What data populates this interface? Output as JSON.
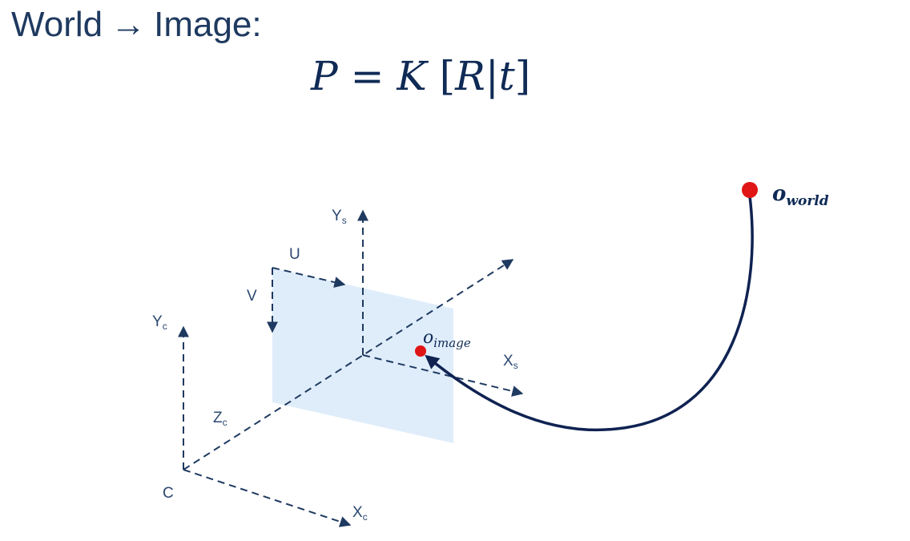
{
  "title": {
    "from": "World",
    "arrow": "→",
    "to": "Image:"
  },
  "formula": {
    "P": "P",
    "eq": "=",
    "K": "K",
    "lb": "[",
    "R": "R",
    "bar": "|",
    "t": "t",
    "rb": "]"
  },
  "labels": {
    "ys": "Y",
    "ys_sub": "s",
    "u": "U",
    "v": "V",
    "yc": "Y",
    "yc_sub": "c",
    "zc": "Z",
    "zc_sub": "c",
    "xs": "X",
    "xs_sub": "s",
    "c": "C",
    "xc": "X",
    "xc_sub": "c"
  },
  "points": {
    "o_image": {
      "base": "o",
      "sub": "image"
    },
    "o_world": {
      "base": "o",
      "sub": "world"
    }
  },
  "colors": {
    "axis": "#1f3a60",
    "plane": "#dcebfb",
    "point": "#e01515",
    "curve": "#0f2252"
  }
}
